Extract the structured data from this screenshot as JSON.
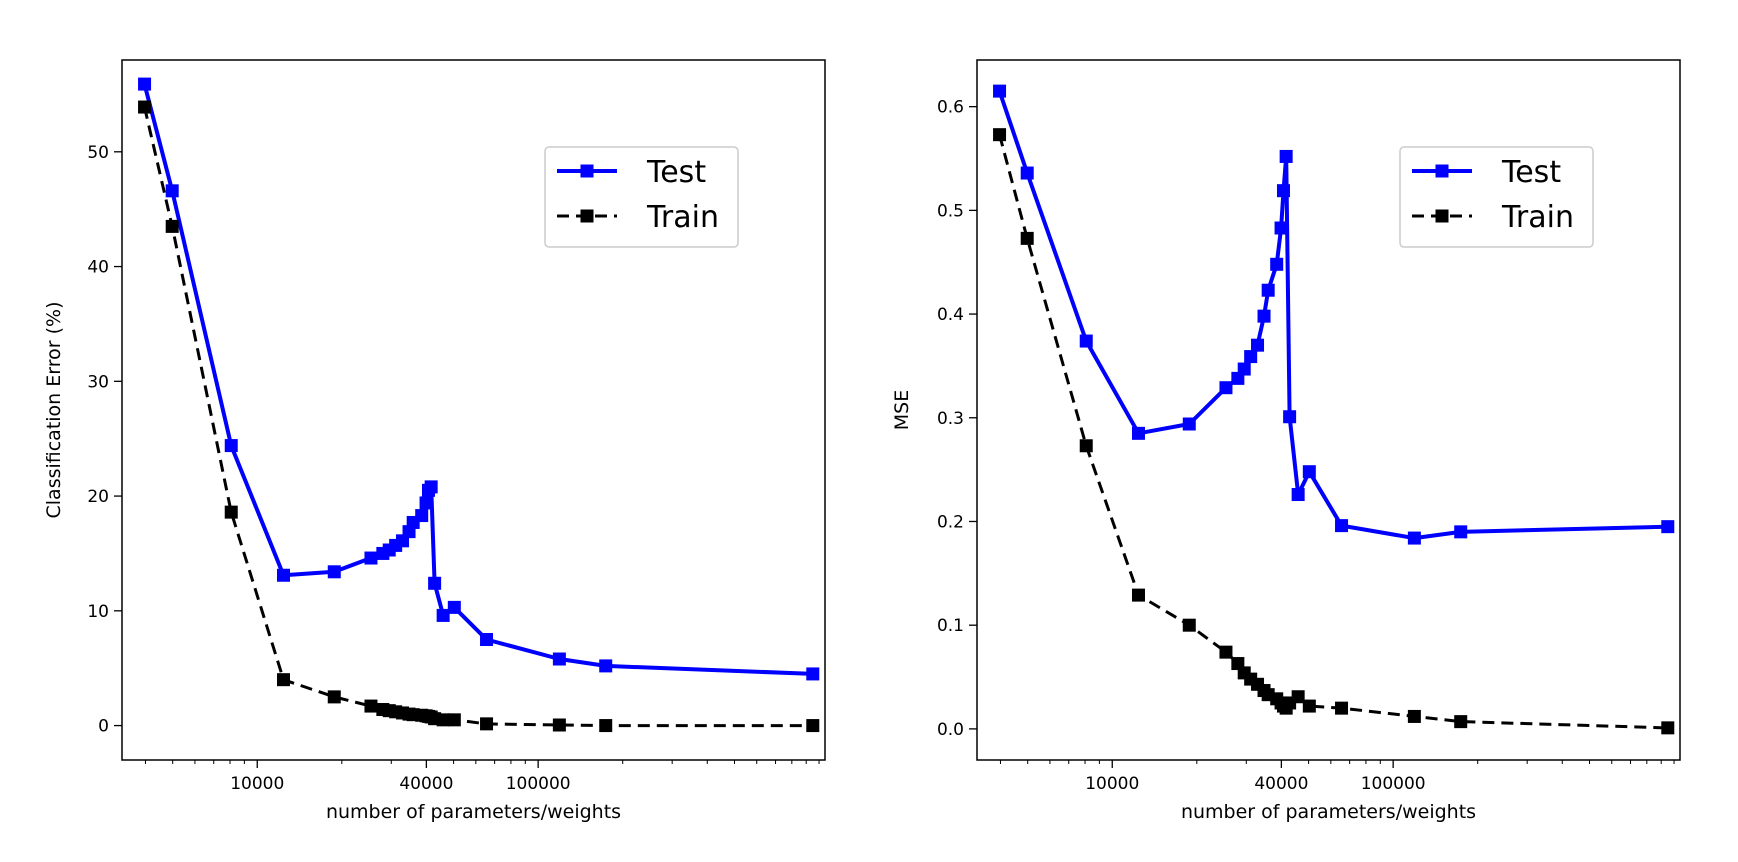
{
  "chart_data": [
    {
      "type": "line",
      "xlabel": "number of parameters/weights",
      "ylabel": "Classification Error (%)",
      "x_scale": "log",
      "xlim": [
        3300,
        1050000
      ],
      "ylim": [
        -3,
        58
      ],
      "x_ticks": [
        10000,
        40000,
        100000
      ],
      "x_tick_labels": [
        "10000",
        "40000",
        "100000"
      ],
      "y_ticks": [
        0,
        10,
        20,
        30,
        40,
        50
      ],
      "y_tick_labels": [
        "0",
        "10",
        "20",
        "30",
        "40",
        "50"
      ],
      "legend_position": "upper-right",
      "grid": false,
      "series": [
        {
          "name": "Test",
          "color": "#0000ff",
          "linestyle": "solid",
          "marker": "square",
          "points": [
            [
              3970,
              55.9
            ],
            [
              4980,
              46.6
            ],
            [
              8080,
              24.4
            ],
            [
              12400,
              13.1
            ],
            [
              18800,
              13.4
            ],
            [
              25400,
              14.6
            ],
            [
              28000,
              15.0
            ],
            [
              29500,
              15.3
            ],
            [
              31100,
              15.7
            ],
            [
              32900,
              16.1
            ],
            [
              34700,
              16.9
            ],
            [
              35900,
              17.7
            ],
            [
              38500,
              18.3
            ],
            [
              39900,
              19.4
            ],
            [
              40700,
              20.5
            ],
            [
              41600,
              20.8
            ],
            [
              42800,
              12.4
            ],
            [
              45900,
              9.6
            ],
            [
              50300,
              10.3
            ],
            [
              65500,
              7.5
            ],
            [
              119000,
              5.8
            ],
            [
              174000,
              5.2
            ],
            [
              950000,
              4.5
            ]
          ]
        },
        {
          "name": "Train",
          "color": "#000000",
          "linestyle": "dashed",
          "marker": "square",
          "points": [
            [
              3970,
              53.9
            ],
            [
              4980,
              43.5
            ],
            [
              8080,
              18.6
            ],
            [
              12400,
              4.0
            ],
            [
              18800,
              2.5
            ],
            [
              25400,
              1.7
            ],
            [
              28000,
              1.4
            ],
            [
              29500,
              1.3
            ],
            [
              31100,
              1.2
            ],
            [
              32900,
              1.1
            ],
            [
              34700,
              1.0
            ],
            [
              35900,
              0.95
            ],
            [
              38500,
              0.9
            ],
            [
              39900,
              0.85
            ],
            [
              40700,
              0.8
            ],
            [
              41600,
              0.75
            ],
            [
              42800,
              0.6
            ],
            [
              45900,
              0.5
            ],
            [
              50300,
              0.5
            ],
            [
              65500,
              0.15
            ],
            [
              119000,
              0.05
            ],
            [
              174000,
              0.0
            ],
            [
              950000,
              0.0
            ]
          ]
        }
      ]
    },
    {
      "type": "line",
      "xlabel": "number of parameters/weights",
      "ylabel": "MSE",
      "x_scale": "log",
      "xlim": [
        3300,
        1050000
      ],
      "ylim": [
        -0.03,
        0.645
      ],
      "x_ticks": [
        10000,
        40000,
        100000
      ],
      "x_tick_labels": [
        "10000",
        "40000",
        "100000"
      ],
      "y_ticks": [
        0.0,
        0.1,
        0.2,
        0.3,
        0.4,
        0.5,
        0.6
      ],
      "y_tick_labels": [
        "0.0",
        "0.1",
        "0.2",
        "0.3",
        "0.4",
        "0.5",
        "0.6"
      ],
      "legend_position": "upper-right",
      "grid": false,
      "series": [
        {
          "name": "Test",
          "color": "#0000ff",
          "linestyle": "solid",
          "marker": "square",
          "points": [
            [
              3970,
              0.615
            ],
            [
              4980,
              0.536
            ],
            [
              8080,
              0.374
            ],
            [
              12400,
              0.285
            ],
            [
              18800,
              0.294
            ],
            [
              25400,
              0.329
            ],
            [
              28000,
              0.338
            ],
            [
              29500,
              0.347
            ],
            [
              31100,
              0.359
            ],
            [
              32900,
              0.37
            ],
            [
              34700,
              0.398
            ],
            [
              35900,
              0.423
            ],
            [
              38500,
              0.448
            ],
            [
              39900,
              0.483
            ],
            [
              40700,
              0.519
            ],
            [
              41600,
              0.552
            ],
            [
              42800,
              0.301
            ],
            [
              45900,
              0.226
            ],
            [
              50300,
              0.248
            ],
            [
              65500,
              0.196
            ],
            [
              119000,
              0.184
            ],
            [
              174000,
              0.19
            ],
            [
              950000,
              0.195
            ]
          ]
        },
        {
          "name": "Train",
          "color": "#000000",
          "linestyle": "dashed",
          "marker": "square",
          "points": [
            [
              3970,
              0.573
            ],
            [
              4980,
              0.473
            ],
            [
              8080,
              0.273
            ],
            [
              12400,
              0.129
            ],
            [
              18800,
              0.1
            ],
            [
              25400,
              0.074
            ],
            [
              28000,
              0.063
            ],
            [
              29500,
              0.054
            ],
            [
              31100,
              0.048
            ],
            [
              32900,
              0.043
            ],
            [
              34700,
              0.037
            ],
            [
              35900,
              0.033
            ],
            [
              38500,
              0.029
            ],
            [
              39900,
              0.025
            ],
            [
              40700,
              0.022
            ],
            [
              41600,
              0.02
            ],
            [
              42800,
              0.025
            ],
            [
              45900,
              0.031
            ],
            [
              50300,
              0.022
            ],
            [
              65500,
              0.02
            ],
            [
              119000,
              0.012
            ],
            [
              174000,
              0.007
            ],
            [
              950000,
              0.001
            ]
          ]
        }
      ]
    }
  ]
}
